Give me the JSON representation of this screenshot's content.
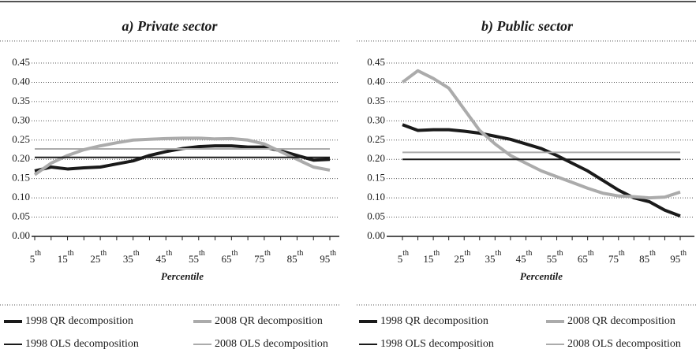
{
  "chart_data": [
    {
      "type": "line",
      "title": "a) Private sector",
      "x_label": "Percentile",
      "categories": [
        "5th",
        null,
        "15th",
        null,
        "25th",
        null,
        "35th",
        null,
        "45th",
        null,
        "55th",
        null,
        "65th",
        null,
        "75th",
        null,
        "85th",
        null,
        "95th"
      ],
      "series": [
        {
          "name": "1998 QR decomposition",
          "color": "#1a1a1a",
          "line_width": 4,
          "values": [
            0.17,
            0.18,
            0.175,
            0.178,
            0.18,
            0.188,
            0.196,
            0.21,
            0.22,
            0.228,
            0.233,
            0.235,
            0.235,
            0.232,
            0.232,
            0.222,
            0.21,
            0.198,
            0.2
          ]
        },
        {
          "name": "2008 QR decomposition",
          "color": "#ababab",
          "line_width": 4,
          "values": [
            0.16,
            0.19,
            0.21,
            0.225,
            0.235,
            0.243,
            0.25,
            0.252,
            0.254,
            0.255,
            0.255,
            0.253,
            0.254,
            0.25,
            0.24,
            0.22,
            0.2,
            0.18,
            0.172
          ]
        },
        {
          "name": "1998 OLS decomposition",
          "color": "#1a1a1a",
          "line_width": 2,
          "values": [
            0.205,
            0.205,
            0.205,
            0.205,
            0.205,
            0.205,
            0.205,
            0.205,
            0.205,
            0.205,
            0.205,
            0.205,
            0.205,
            0.205,
            0.205,
            0.205,
            0.205,
            0.205,
            0.205
          ]
        },
        {
          "name": "2008 OLS decomposition",
          "color": "#ababab",
          "line_width": 2,
          "values": [
            0.227,
            0.227,
            0.227,
            0.227,
            0.227,
            0.227,
            0.227,
            0.227,
            0.227,
            0.227,
            0.227,
            0.227,
            0.227,
            0.227,
            0.227,
            0.227,
            0.227,
            0.227,
            0.227
          ]
        }
      ],
      "ylim": [
        0,
        0.45
      ],
      "yticks": [
        {
          "value": 0,
          "label": "0.00"
        },
        {
          "value": 0.05,
          "label": "0.05"
        },
        {
          "value": 0.1,
          "label": "0.10"
        },
        {
          "value": 0.15,
          "label": "0.15"
        },
        {
          "value": 0.2,
          "label": "0.20"
        },
        {
          "value": 0.25,
          "label": "0.25"
        },
        {
          "value": 0.3,
          "label": "0.30"
        },
        {
          "value": 0.35,
          "label": "0.35"
        },
        {
          "value": 0.4,
          "label": "0.40"
        },
        {
          "value": 0.45,
          "label": "0.45"
        }
      ],
      "grid": true
    },
    {
      "type": "line",
      "title": "b) Public sector",
      "x_label": "Percentile",
      "categories": [
        "5th",
        null,
        "15th",
        null,
        "25th",
        null,
        "35th",
        null,
        "45th",
        null,
        "55th",
        null,
        "65th",
        null,
        "75th",
        null,
        "85th",
        null,
        "95th"
      ],
      "series": [
        {
          "name": "1998 QR decomposition",
          "color": "#1a1a1a",
          "line_width": 4,
          "values": [
            0.29,
            0.275,
            0.277,
            0.277,
            0.273,
            0.268,
            0.26,
            0.252,
            0.24,
            0.228,
            0.21,
            0.19,
            0.17,
            0.145,
            0.12,
            0.1,
            0.09,
            0.068,
            0.053
          ]
        },
        {
          "name": "2008 QR decomposition",
          "color": "#ababab",
          "line_width": 4,
          "values": [
            0.4,
            0.43,
            0.41,
            0.385,
            0.33,
            0.275,
            0.24,
            0.21,
            0.19,
            0.17,
            0.155,
            0.14,
            0.125,
            0.112,
            0.105,
            0.103,
            0.1,
            0.102,
            0.115
          ]
        },
        {
          "name": "1998 OLS decomposition",
          "color": "#1a1a1a",
          "line_width": 2,
          "values": [
            0.2,
            0.2,
            0.2,
            0.2,
            0.2,
            0.2,
            0.2,
            0.2,
            0.2,
            0.2,
            0.2,
            0.2,
            0.2,
            0.2,
            0.2,
            0.2,
            0.2,
            0.2,
            0.2
          ]
        },
        {
          "name": "2008 OLS decomposition",
          "color": "#ababab",
          "line_width": 2,
          "values": [
            0.218,
            0.218,
            0.218,
            0.218,
            0.218,
            0.218,
            0.218,
            0.218,
            0.218,
            0.218,
            0.218,
            0.218,
            0.218,
            0.218,
            0.218,
            0.218,
            0.218,
            0.218,
            0.218
          ]
        }
      ],
      "ylim": [
        0,
        0.45
      ],
      "yticks": [
        {
          "value": 0,
          "label": "0.00"
        },
        {
          "value": 0.05,
          "label": "0.05"
        },
        {
          "value": 0.1,
          "label": "0.10"
        },
        {
          "value": 0.15,
          "label": "0.15"
        },
        {
          "value": 0.2,
          "label": "0.20"
        },
        {
          "value": 0.25,
          "label": "0.25"
        },
        {
          "value": 0.3,
          "label": "0.30"
        },
        {
          "value": 0.35,
          "label": "0.35"
        },
        {
          "value": 0.4,
          "label": "0.40"
        },
        {
          "value": 0.45,
          "label": "0.45"
        }
      ],
      "grid": true
    }
  ]
}
